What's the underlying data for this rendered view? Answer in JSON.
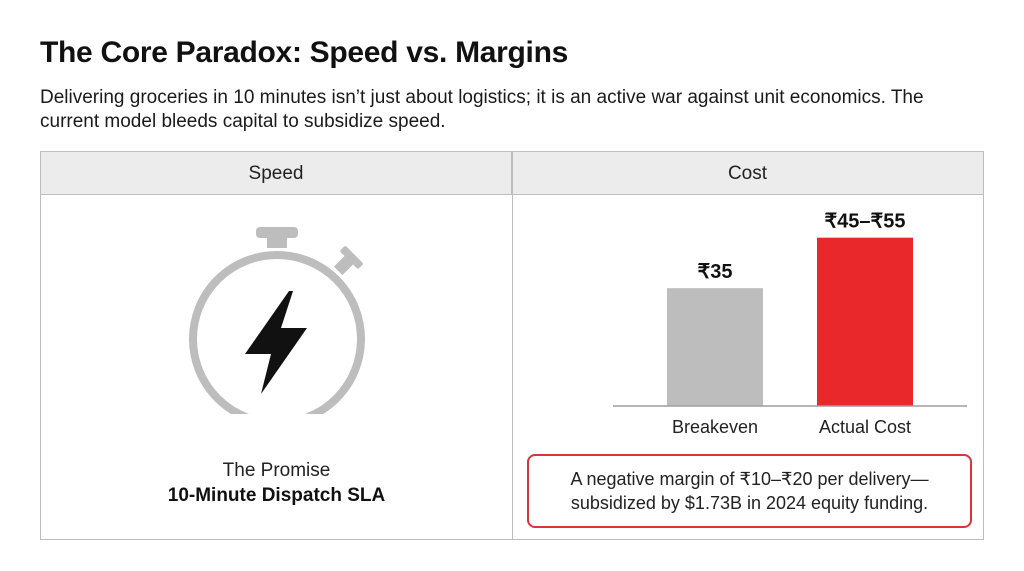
{
  "header": {
    "title": "The Core Paradox: Speed vs. Margins",
    "subtitle": "Delivering groceries in 10 minutes isn’t just about logistics; it is an active war against unit economics. The current model bleeds capital to subsidize speed."
  },
  "columns": {
    "left_label": "Speed",
    "right_label": "Cost"
  },
  "speed_panel": {
    "icon": "stopwatch-lightning-icon",
    "line1": "The Promise",
    "line2": "10-Minute Dispatch SLA"
  },
  "chart_data": {
    "type": "bar",
    "categories": [
      "Breakeven",
      "Actual Cost"
    ],
    "values": [
      35,
      50
    ],
    "data_labels": [
      "₹35",
      "₹45–₹55"
    ],
    "ylim": [
      0,
      60
    ],
    "colors": [
      "#bdbdbd",
      "#e8282b"
    ],
    "grid": false,
    "title": "",
    "xlabel": "",
    "ylabel": ""
  },
  "callout": {
    "text": "A negative margin of ₹10–₹20 per delivery—subsidized by $1.73B in 2024 equity funding."
  },
  "colors": {
    "accent_red": "#e8282b",
    "neutral_bar": "#bdbdbd",
    "border": "#bdbdbd",
    "header_bg": "#ececec"
  }
}
